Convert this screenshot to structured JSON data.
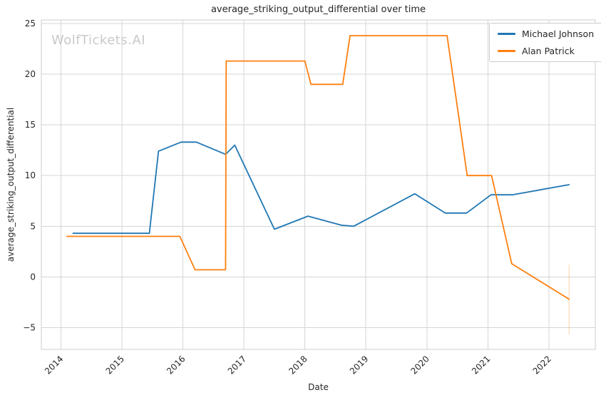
{
  "chart_data": {
    "type": "line",
    "title": "average_striking_output_differential over time",
    "xlabel": "Date",
    "ylabel": "average_striking_output_differential",
    "watermark": "WolfTickets.AI",
    "grid": true,
    "legend_position": "upper right",
    "xlim": [
      2013.68,
      2022.76
    ],
    "ylim": [
      -7.15,
      25.35
    ],
    "x_ticks": [
      2014,
      2015,
      2016,
      2017,
      2018,
      2019,
      2020,
      2021,
      2022
    ],
    "y_ticks": [
      -5,
      0,
      5,
      10,
      15,
      20,
      25
    ],
    "series": [
      {
        "name": "Michael Johnson",
        "color": "#1f77b4",
        "x": [
          2014.2,
          2015.45,
          2015.6,
          2015.97,
          2016.22,
          2016.7,
          2016.85,
          2017.5,
          2018.05,
          2018.6,
          2018.8,
          2019.8,
          2020.3,
          2020.65,
          2021.05,
          2021.4,
          2022.33
        ],
        "y": [
          4.3,
          4.3,
          12.4,
          13.3,
          13.3,
          12.1,
          13.0,
          4.7,
          6.0,
          5.1,
          5.0,
          8.2,
          6.3,
          6.3,
          8.1,
          8.1,
          9.1
        ]
      },
      {
        "name": "Alan Patrick",
        "color": "#ff7f0e",
        "x": [
          2014.1,
          2015.95,
          2016.2,
          2016.7,
          2016.71,
          2018.0,
          2018.1,
          2018.62,
          2018.74,
          2020.33,
          2020.66,
          2021.06,
          2021.39,
          2022.33
        ],
        "y": [
          4.0,
          4.0,
          0.7,
          0.7,
          21.3,
          21.3,
          19.0,
          19.0,
          23.8,
          23.8,
          10.0,
          10.0,
          1.3,
          -2.2
        ],
        "error_bar": {
          "x": 2022.33,
          "y_low": -5.7,
          "y_high": 1.2
        }
      }
    ]
  }
}
